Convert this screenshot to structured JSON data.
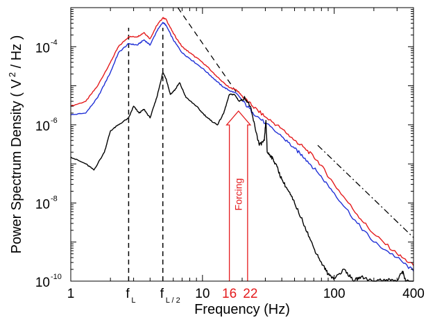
{
  "chart_data": {
    "type": "line",
    "title": "",
    "xlabel": "Frequency (Hz)",
    "ylabel": "Power Spectrum Density ( V 2 / Hz )",
    "ylabel_parts": {
      "pre": "Power Spectrum Density ( V",
      "sup": "2",
      "post": " / Hz )"
    },
    "xscale": "log",
    "yscale": "log",
    "xlim": [
      1,
      400
    ],
    "ylim": [
      1e-10,
      0.001
    ],
    "grid": false,
    "legend": "none",
    "x_ticks": [
      {
        "value": 1,
        "label": "1"
      },
      {
        "value": 10,
        "label": "10"
      },
      {
        "value": 100,
        "label": "100"
      },
      {
        "value": 400,
        "label": "400"
      }
    ],
    "y_ticks": [
      {
        "value": 1e-10,
        "base": "10",
        "exp": "-10"
      },
      {
        "value": 1e-08,
        "base": "10",
        "exp": "-8"
      },
      {
        "value": 1e-06,
        "base": "10",
        "exp": "-6"
      },
      {
        "value": 0.0001,
        "base": "10",
        "exp": "-4"
      }
    ],
    "vertical_markers": [
      {
        "x": 2.75,
        "label": "f",
        "sub": "L"
      },
      {
        "x": 5.0,
        "label": "f",
        "sub": "L / 2"
      }
    ],
    "forcing": {
      "label": "Forcing",
      "x_start": 16,
      "x_end": 22,
      "start_label": "16",
      "end_label": "22",
      "color": "#e41a1c"
    },
    "reference_lines": [
      {
        "style": "dashed",
        "x": [
          6.5,
          18
        ],
        "y": [
          0.001,
          7e-06
        ]
      },
      {
        "style": "dashdot",
        "x": [
          75,
          400
        ],
        "y": [
          3e-07,
          1.3e-09
        ]
      }
    ],
    "series": [
      {
        "color": "#e41a1c",
        "x": [
          1,
          1.3,
          1.6,
          2,
          2.3,
          2.75,
          3.2,
          3.6,
          4,
          4.5,
          5,
          5.3,
          6,
          7,
          8,
          10,
          12,
          14,
          16,
          18,
          20,
          24,
          30,
          40,
          50,
          60,
          75,
          100,
          150,
          200,
          300,
          400
        ],
        "y": [
          3e-06,
          4e-06,
          1e-05,
          4e-05,
          0.0001,
          0.00018,
          0.00018,
          0.00023,
          0.00016,
          0.00035,
          0.00055,
          0.0005,
          0.00022,
          0.0001,
          7e-05,
          4e-05,
          2.2e-05,
          1.3e-05,
          9e-06,
          8e-06,
          5.5e-06,
          3e-06,
          1.6e-06,
          8e-07,
          4e-07,
          2.5e-07,
          1.2e-07,
          3e-08,
          5e-09,
          1.6e-09,
          5e-10,
          2.5e-10
        ]
      },
      {
        "color": "#1f2fd6",
        "x": [
          1,
          1.3,
          1.6,
          2,
          2.3,
          2.75,
          3.2,
          3.6,
          4,
          4.5,
          5,
          5.3,
          6,
          7,
          8,
          10,
          12,
          14,
          16,
          18,
          20,
          24,
          30,
          40,
          50,
          60,
          75,
          100,
          150,
          200,
          300,
          400
        ],
        "y": [
          1.8e-06,
          2e-06,
          5e-06,
          2.2e-05,
          7e-05,
          0.00012,
          0.00011,
          0.00015,
          0.00011,
          0.00025,
          0.00042,
          0.00035,
          0.00015,
          7e-05,
          5e-05,
          2.8e-05,
          1.6e-05,
          1e-05,
          7.5e-06,
          6.5e-06,
          4.2e-06,
          2.1e-06,
          1.1e-06,
          5e-07,
          2.5e-07,
          1.4e-07,
          6e-08,
          1.8e-08,
          3e-09,
          1e-09,
          4e-10,
          1.8e-10
        ]
      },
      {
        "color": "#000000",
        "x": [
          1,
          1.3,
          1.5,
          1.8,
          2,
          2.3,
          2.75,
          3,
          3.3,
          3.6,
          4,
          4.5,
          5,
          5.3,
          5.7,
          6.2,
          6.7,
          7.5,
          9,
          10,
          11.5,
          13,
          14.5,
          16,
          17.5,
          19,
          21,
          23,
          25,
          27,
          29.5,
          30.3,
          31,
          33,
          36,
          40,
          45,
          50,
          60,
          70,
          80,
          90,
          100,
          120,
          140,
          160,
          200,
          250,
          300,
          330,
          350,
          400
        ],
        "y": [
          1.5e-07,
          1e-07,
          7e-08,
          2e-07,
          7e-07,
          1e-06,
          1.5e-06,
          3e-06,
          2e-06,
          2.5e-06,
          1.5e-06,
          5e-06,
          2.2e-05,
          1.5e-05,
          6e-06,
          8e-06,
          1.2e-05,
          5e-06,
          3e-06,
          2e-06,
          1.3e-06,
          1e-06,
          2e-06,
          6e-06,
          6e-06,
          4e-06,
          5e-06,
          3e-06,
          9e-07,
          3e-07,
          4e-07,
          1.3e-06,
          2e-07,
          1.6e-07,
          1e-07,
          4e-08,
          2e-08,
          1e-08,
          2.5e-09,
          7e-10,
          3e-10,
          1.5e-10,
          1.2e-10,
          2e-10,
          1e-10,
          1.3e-10,
          1e-10,
          1.1e-10,
          1e-10,
          1.8e-10,
          1e-10,
          9e-11
        ]
      }
    ]
  }
}
